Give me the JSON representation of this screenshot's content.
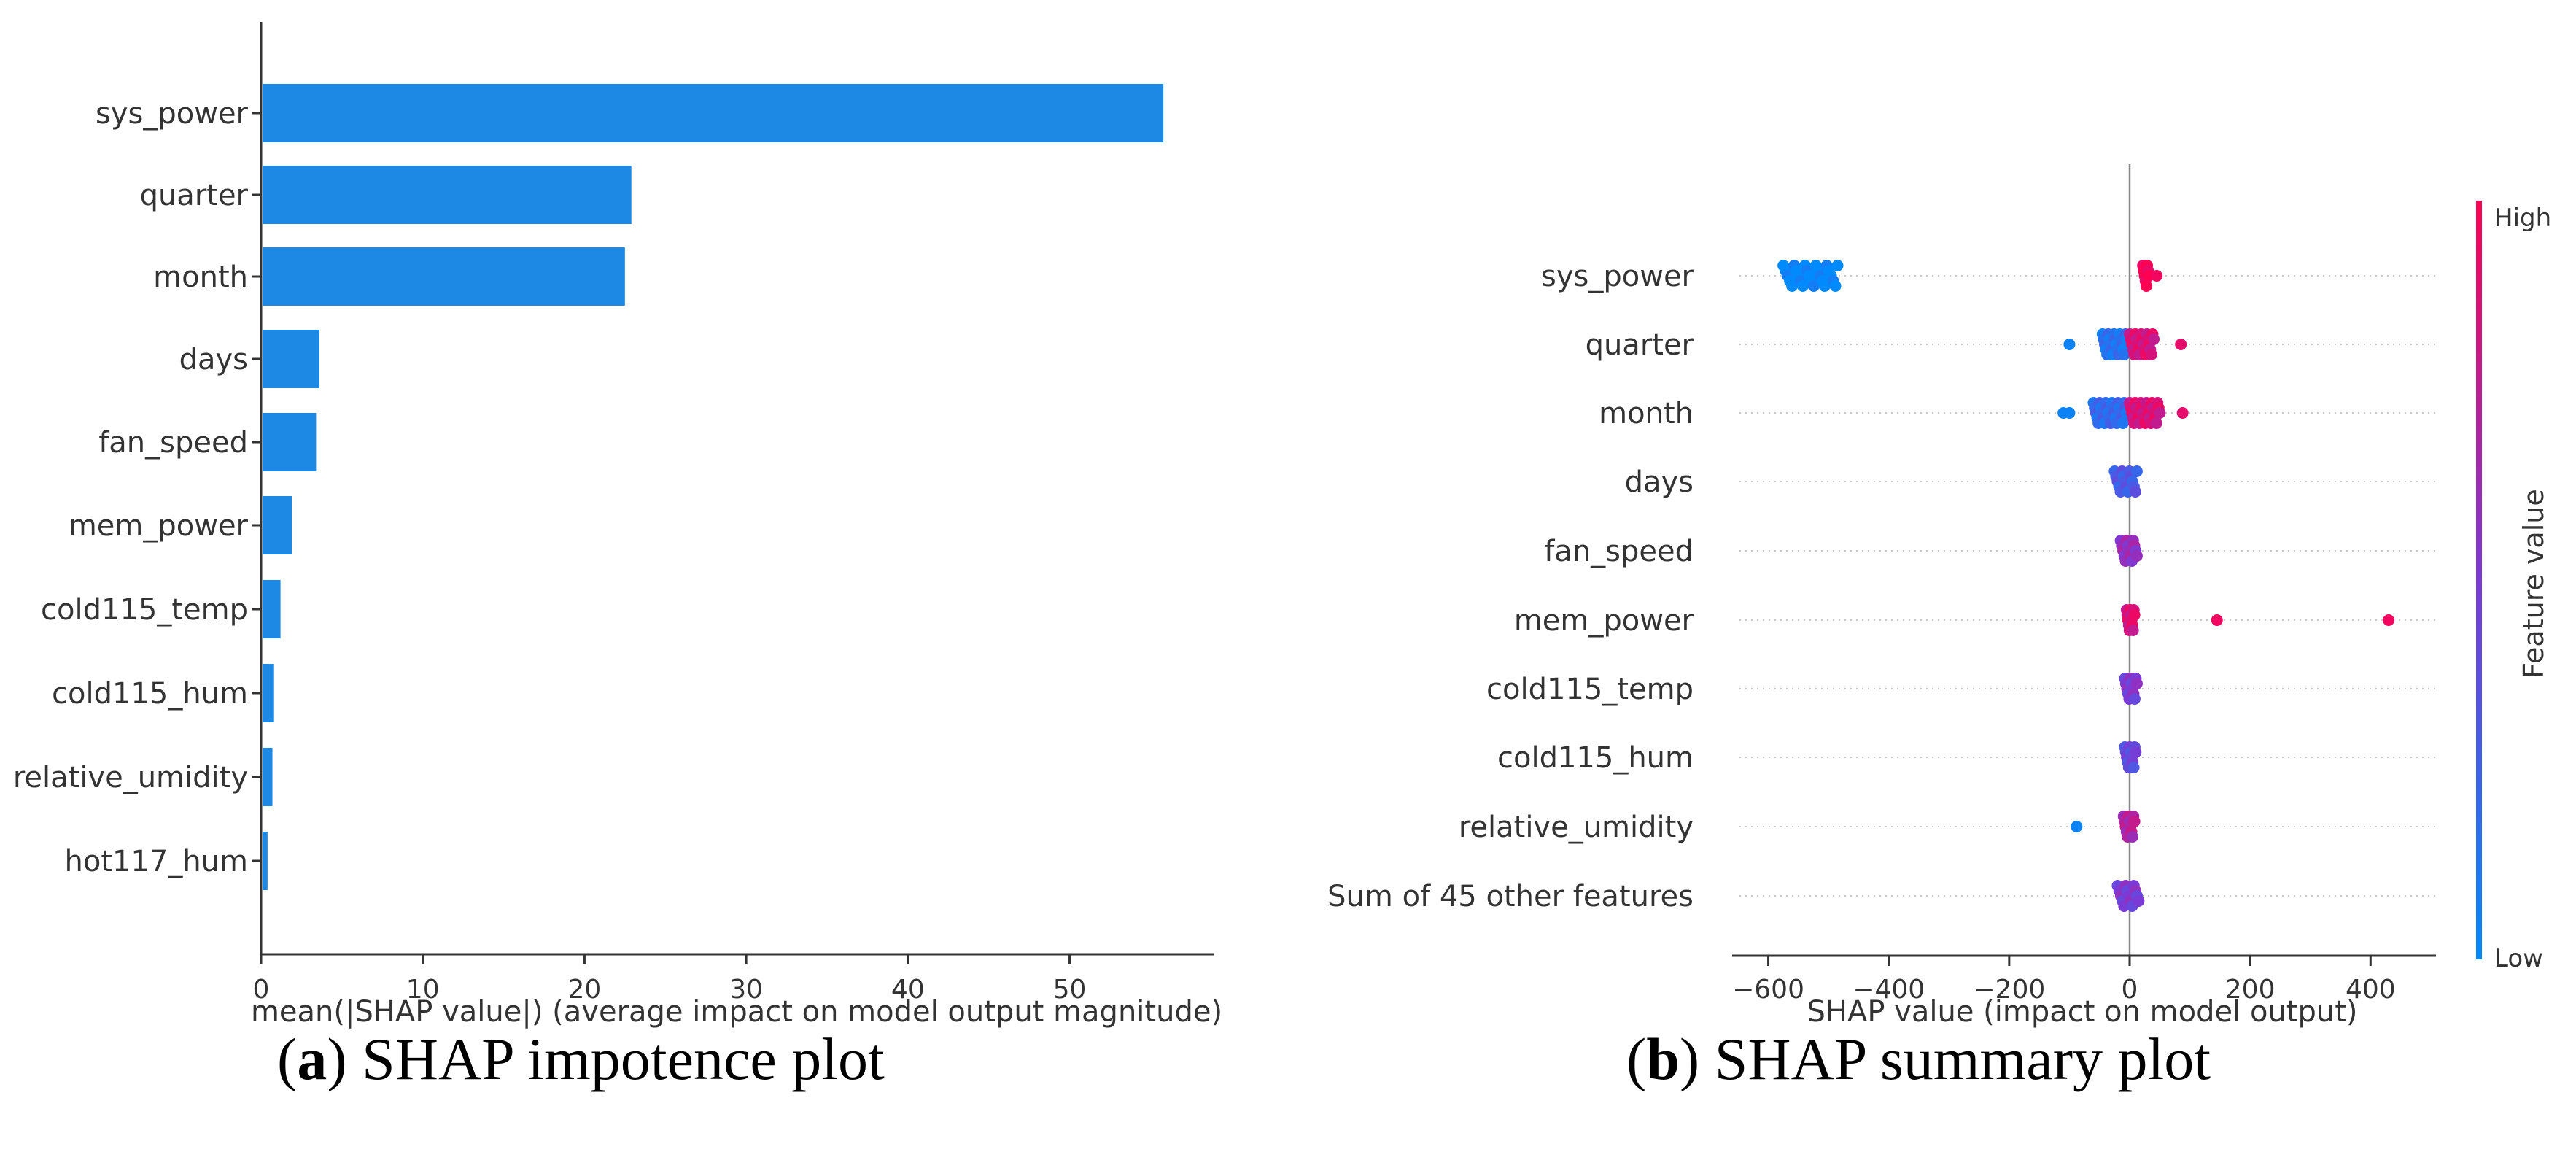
{
  "chart_data": [
    {
      "type": "bar",
      "orientation": "horizontal",
      "categories": [
        "sys_power",
        "quarter",
        "month",
        "days",
        "fan_speed",
        "mem_power",
        "cold115_temp",
        "cold115_hum",
        "relative_umidity",
        "hot117_hum"
      ],
      "values": [
        55.8,
        22.9,
        22.5,
        3.6,
        3.4,
        1.9,
        1.2,
        0.8,
        0.7,
        0.4
      ],
      "xlabel": "mean(|SHAP value|) (average impact on model output magnitude)",
      "xlim": [
        0,
        58
      ],
      "xticks": [
        0,
        10,
        20,
        30,
        40,
        50
      ],
      "bar_color": "#1e88e5",
      "caption_letter": "a",
      "caption_text": "SHAP impotence plot"
    },
    {
      "type": "scatter",
      "subtype": "beeswarm",
      "categories": [
        "sys_power",
        "quarter",
        "month",
        "days",
        "fan_speed",
        "mem_power",
        "cold115_temp",
        "cold115_hum",
        "relative_umidity",
        "Sum of 45 other features"
      ],
      "xlabel": "SHAP value (impact on model output)",
      "xlim": [
        -660,
        480
      ],
      "xticks": [
        -600,
        -400,
        -200,
        0,
        200,
        400
      ],
      "points": [
        {
          "feature": "sys_power",
          "x_range": [
            -575,
            -485
          ],
          "value": 0.0,
          "count": 26
        },
        {
          "feature": "sys_power",
          "x_range": [
            22,
            32
          ],
          "value": 1.0,
          "count": 8
        },
        {
          "feature": "sys_power",
          "x": 45,
          "value": 0.95
        },
        {
          "feature": "quarter",
          "x": -100,
          "value": 0.05
        },
        {
          "feature": "quarter",
          "x_range": [
            -45,
            -5
          ],
          "value": 0.15,
          "count": 22
        },
        {
          "feature": "quarter",
          "x_range": [
            0,
            40
          ],
          "value": 0.85,
          "count": 22
        },
        {
          "feature": "quarter",
          "x": 85,
          "value": 0.9
        },
        {
          "feature": "month",
          "x": -110,
          "value": 0.05
        },
        {
          "feature": "month",
          "x": -100,
          "value": 0.05
        },
        {
          "feature": "month",
          "x_range": [
            -60,
            -5
          ],
          "value": 0.2,
          "count": 28
        },
        {
          "feature": "month",
          "x_range": [
            0,
            50
          ],
          "value": 0.85,
          "count": 28
        },
        {
          "feature": "month",
          "x": 88,
          "value": 0.9
        },
        {
          "feature": "days",
          "x_range": [
            -25,
            12
          ],
          "value": 0.3,
          "count": 16
        },
        {
          "feature": "fan_speed",
          "x_range": [
            -15,
            12
          ],
          "value": 0.6,
          "count": 14
        },
        {
          "feature": "mem_power",
          "x_range": [
            -5,
            8
          ],
          "value": 0.85,
          "count": 12
        },
        {
          "feature": "mem_power",
          "x": 145,
          "value": 0.95
        },
        {
          "feature": "mem_power",
          "x": 430,
          "value": 0.95
        },
        {
          "feature": "cold115_temp",
          "x_range": [
            -8,
            12
          ],
          "value": 0.5,
          "count": 12
        },
        {
          "feature": "cold115_hum",
          "x_range": [
            -8,
            10
          ],
          "value": 0.4,
          "count": 12
        },
        {
          "feature": "relative_umidity",
          "x": -88,
          "value": 0.05
        },
        {
          "feature": "relative_umidity",
          "x_range": [
            -10,
            8
          ],
          "value": 0.7,
          "count": 12
        },
        {
          "feature": "Sum of 45 other features",
          "x_range": [
            -20,
            15
          ],
          "value": 0.5,
          "count": 14
        }
      ],
      "colorbar": {
        "label": "Feature value",
        "high_label": "High",
        "low_label": "Low",
        "low_color": "#008afb",
        "high_color": "#ff0052"
      },
      "caption_letter": "b",
      "caption_text": "SHAP summary plot"
    }
  ]
}
